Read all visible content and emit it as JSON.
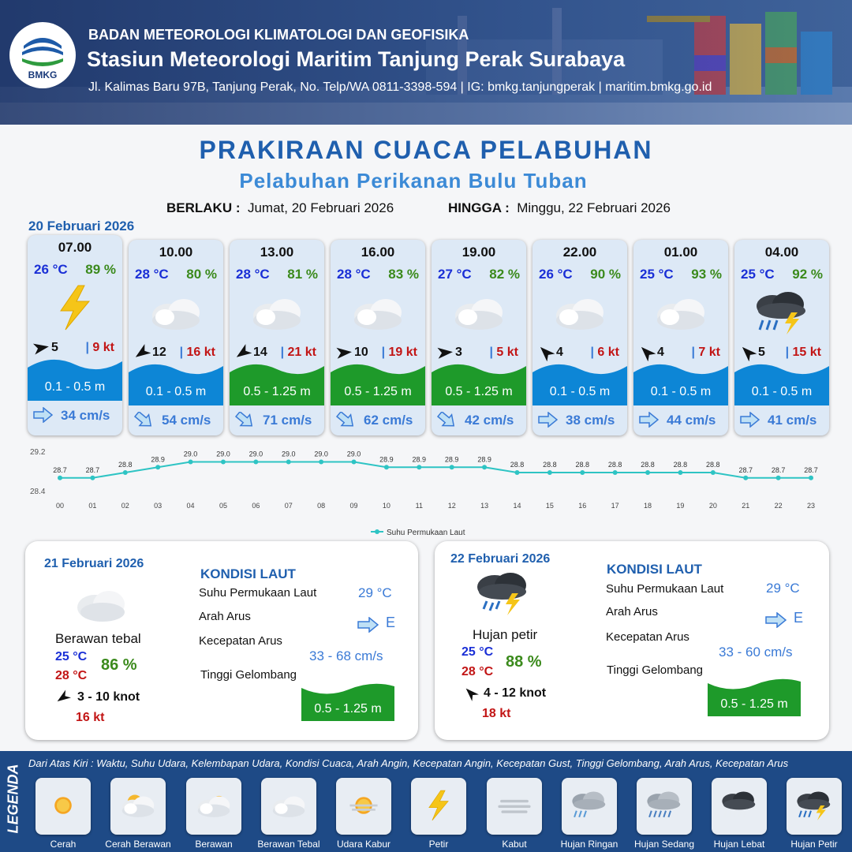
{
  "header": {
    "org": "BADAN METEOROLOGI KLIMATOLOGI DAN GEOFISIKA",
    "station": "Stasiun Meteorologi Maritim Tanjung Perak Surabaya",
    "address": "Jl. Kalimas Baru 97B, Tanjung Perak, No. Telp/WA 0811-3398-594 | IG: bmkg.tanjungperak | maritim.bmkg.go.id",
    "logo_text": "BMKG"
  },
  "title": "PRAKIRAAN CUACA PELABUHAN",
  "subtitle": "Pelabuhan Perikanan Bulu Tuban",
  "validity": {
    "from_label": "BERLAKU :",
    "from": "Jumat, 20 Februari 2026",
    "to_label": "HINGGA :",
    "to": "Minggu, 22 Februari 2026"
  },
  "day1": {
    "date": "20 Februari 2026",
    "cards": [
      {
        "time": "07.00",
        "temp": "26 °C",
        "hum": "89 %",
        "icon": "lightning-icon",
        "wind_dir_deg": 80,
        "wind": "5",
        "gust": "9 kt",
        "wave": "0.1 - 0.5 m",
        "wave_color": "#0d86d6",
        "current_dir_deg": 0,
        "current": "34 cm/s"
      },
      {
        "time": "10.00",
        "temp": "28 °C",
        "hum": "80 %",
        "icon": "cloud-icon",
        "wind_dir_deg": 235,
        "wind": "12",
        "gust": "16 kt",
        "wave": "0.1 - 0.5 m",
        "wave_color": "#0d86d6",
        "current_dir_deg": 40,
        "current": "54 cm/s"
      },
      {
        "time": "13.00",
        "temp": "28 °C",
        "hum": "81 %",
        "icon": "cloud-icon",
        "wind_dir_deg": 235,
        "wind": "14",
        "gust": "21 kt",
        "wave": "0.5 - 1.25 m",
        "wave_color": "#1e9a2a",
        "current_dir_deg": 40,
        "current": "71 cm/s"
      },
      {
        "time": "16.00",
        "temp": "28 °C",
        "hum": "83 %",
        "icon": "cloud-icon",
        "wind_dir_deg": 85,
        "wind": "10",
        "gust": "19 kt",
        "wave": "0.5 - 1.25 m",
        "wave_color": "#1e9a2a",
        "current_dir_deg": 40,
        "current": "62 cm/s"
      },
      {
        "time": "19.00",
        "temp": "27 °C",
        "hum": "82 %",
        "icon": "cloud-icon",
        "wind_dir_deg": 85,
        "wind": "3",
        "gust": "5 kt",
        "wave": "0.5 - 1.25 m",
        "wave_color": "#1e9a2a",
        "current_dir_deg": 40,
        "current": "42 cm/s"
      },
      {
        "time": "22.00",
        "temp": "26 °C",
        "hum": "90 %",
        "icon": "cloud-icon",
        "wind_dir_deg": 315,
        "wind": "4",
        "gust": "6 kt",
        "wave": "0.1 - 0.5 m",
        "wave_color": "#0d86d6",
        "current_dir_deg": 0,
        "current": "38 cm/s"
      },
      {
        "time": "01.00",
        "temp": "25 °C",
        "hum": "93 %",
        "icon": "cloud-icon",
        "wind_dir_deg": 315,
        "wind": "4",
        "gust": "7 kt",
        "wave": "0.1 - 0.5 m",
        "wave_color": "#0d86d6",
        "current_dir_deg": 0,
        "current": "44 cm/s"
      },
      {
        "time": "04.00",
        "temp": "25 °C",
        "hum": "92 %",
        "icon": "thunderstorm-icon",
        "wind_dir_deg": 315,
        "wind": "5",
        "gust": "15 kt",
        "wave": "0.1 - 0.5 m",
        "wave_color": "#0d86d6",
        "current_dir_deg": 0,
        "current": "41 cm/s"
      }
    ]
  },
  "chart_data": {
    "type": "line",
    "x": [
      "00",
      "01",
      "02",
      "03",
      "04",
      "05",
      "06",
      "07",
      "08",
      "09",
      "10",
      "11",
      "12",
      "13",
      "14",
      "15",
      "16",
      "17",
      "18",
      "19",
      "20",
      "21",
      "22",
      "23"
    ],
    "series": [
      {
        "name": "Suhu Permukaan Laut",
        "values": [
          28.7,
          28.7,
          28.8,
          28.9,
          29.0,
          29.0,
          29.0,
          29.0,
          29.0,
          29.0,
          28.9,
          28.9,
          28.9,
          28.9,
          28.8,
          28.8,
          28.8,
          28.8,
          28.8,
          28.8,
          28.8,
          28.7,
          28.7,
          28.7
        ],
        "color": "#2ec4c4"
      }
    ],
    "ylim": [
      28.4,
      29.2
    ],
    "yticks": [
      "29.2",
      "28.4"
    ],
    "legend": "bottom-center"
  },
  "day2": {
    "date": "21 Februari 2026",
    "icon": "cloud-icon",
    "condition": "Berawan tebal",
    "tmin": "25 °C",
    "tmax": "28 °C",
    "hum": "86 %",
    "wind_dir_deg": 235,
    "wind": "3  - 10 knot",
    "gust": "16 kt",
    "sea_title": "KONDISI LAUT",
    "sst_label": "Suhu Permukaan Laut",
    "sst": "29 °C",
    "cur_dir_label": "Arah Arus",
    "cur_dir": "E",
    "cur_speed_label": "Kecepatan Arus",
    "cur_speed": "33  - 68 cm/s",
    "wave_label": "Tinggi Gelombang",
    "wave": "0.5 - 1.25 m",
    "wave_color": "#1e9a2a"
  },
  "day3": {
    "date": "22 Februari 2026",
    "icon": "thunderstorm-icon",
    "condition": "Hujan petir",
    "tmin": "25 °C",
    "tmax": "28 °C",
    "hum": "88 %",
    "wind_dir_deg": 315,
    "wind": "4  - 12 knot",
    "gust": "18 kt",
    "sea_title": "KONDISI LAUT",
    "sst_label": "Suhu Permukaan Laut",
    "sst": "29 °C",
    "cur_dir_label": "Arah Arus",
    "cur_dir": "E",
    "cur_speed_label": "Kecepatan Arus",
    "cur_speed": "33 - 60 cm/s",
    "wave_label": "Tinggi Gelombang",
    "wave": "0.5 - 1.25 m",
    "wave_color": "#1e9a2a"
  },
  "legend": {
    "side_label": "LEGENDA",
    "description": "Dari Atas Kiri : Waktu, Suhu Udara, Kelembapan Udara, Kondisi Cuaca, Arah Angin, Kecepatan Angin, Kecepatan Gust, Tinggi Gelombang, Arah Arus, Kecepatan Arus",
    "items": [
      {
        "label": "Cerah",
        "icon": "sun-icon"
      },
      {
        "label": "Cerah Berawan",
        "icon": "sun-cloud-icon"
      },
      {
        "label": "Berawan",
        "icon": "partly-cloudy-icon"
      },
      {
        "label": "Berawan Tebal",
        "icon": "cloud-icon"
      },
      {
        "label": "Udara Kabur",
        "icon": "haze-icon"
      },
      {
        "label": "Petir",
        "icon": "lightning-icon"
      },
      {
        "label": "Kabut",
        "icon": "fog-icon"
      },
      {
        "label": "Hujan Ringan",
        "icon": "light-rain-icon"
      },
      {
        "label": "Hujan Sedang",
        "icon": "moderate-rain-icon"
      },
      {
        "label": "Hujan Lebat",
        "icon": "heavy-rain-icon"
      },
      {
        "label": "Hujan Petir",
        "icon": "thunderstorm-icon"
      }
    ]
  }
}
